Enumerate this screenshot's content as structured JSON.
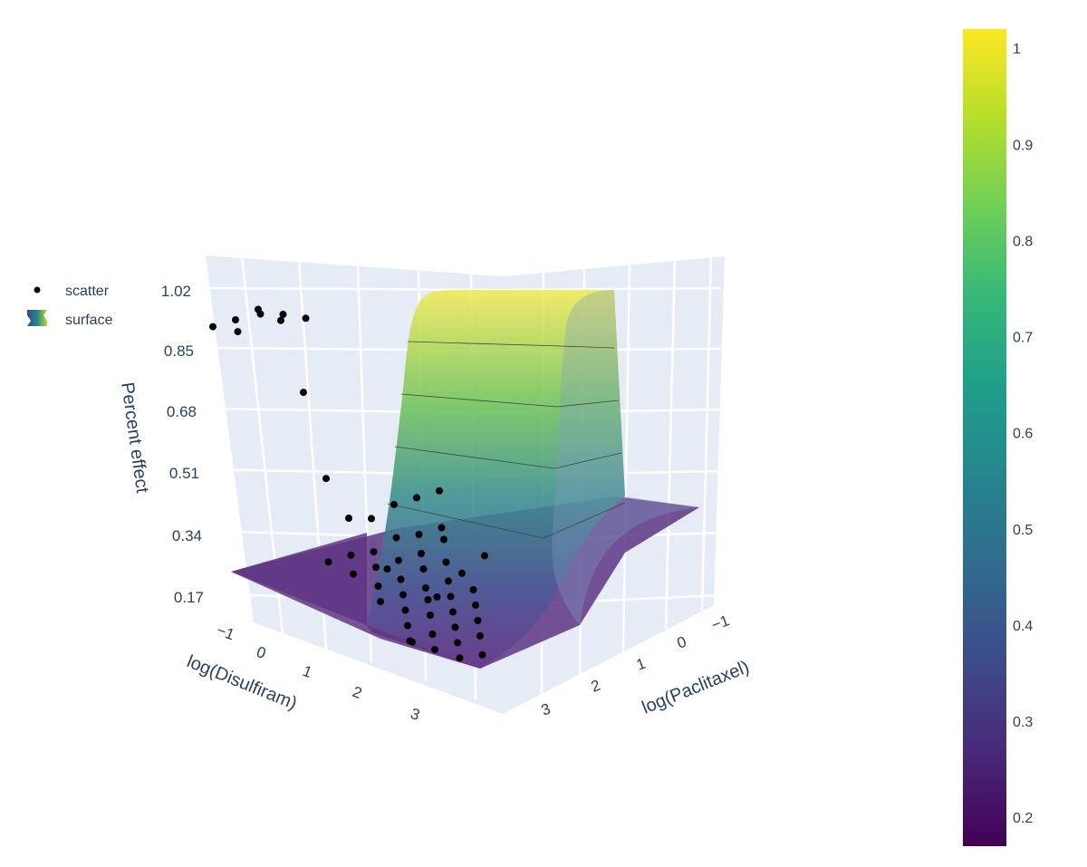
{
  "chart_data": {
    "type": "scatter",
    "series": [
      {
        "name": "scatter",
        "mode": "markers",
        "color": "#000000"
      },
      {
        "name": "surface",
        "mode": "surface",
        "colorscale": "viridis"
      }
    ],
    "legend": {
      "position": "top-left",
      "items": [
        {
          "label": "scatter"
        },
        {
          "label": "surface"
        }
      ]
    },
    "axes": {
      "x": {
        "title": "log(Disulfiram)",
        "ticks": [
          "−1",
          "0",
          "1",
          "2",
          "3"
        ],
        "range": [
          -1.5,
          3.5
        ]
      },
      "y": {
        "title": "log(Paclitaxel)",
        "ticks": [
          "−1",
          "0",
          "1",
          "2",
          "3"
        ],
        "range": [
          -1.5,
          3.5
        ]
      },
      "z": {
        "title": "Percent effect",
        "ticks": [
          "0.17",
          "0.34",
          "0.51",
          "0.68",
          "0.85",
          "1.02"
        ],
        "range": [
          0.12,
          1.08
        ]
      }
    },
    "colorbar": {
      "ticks": [
        "0.2",
        "0.3",
        "0.4",
        "0.5",
        "0.6",
        "0.7",
        "0.8",
        "0.9",
        "1"
      ],
      "range": [
        0.17,
        1.02
      ],
      "colors": [
        "#440154",
        "#482878",
        "#3e4989",
        "#31688e",
        "#26828e",
        "#1f9e89",
        "#35b779",
        "#6ece58",
        "#b5de2b",
        "#fde725"
      ]
    },
    "points": [
      [
        -1.5,
        -1.5,
        0.28
      ],
      [
        -1.0,
        -1.5,
        0.29
      ],
      [
        -0.5,
        -1.5,
        0.3
      ],
      [
        0.0,
        -1.5,
        0.29
      ],
      [
        0.5,
        -1.5,
        0.32
      ],
      [
        1.0,
        -1.5,
        0.46
      ],
      [
        1.5,
        -1.5,
        0.73
      ],
      [
        2.0,
        -1.5,
        0.96
      ],
      [
        2.5,
        -1.5,
        1.02
      ],
      [
        3.0,
        -1.5,
        1.02
      ],
      [
        3.5,
        -1.5,
        1.03
      ],
      [
        -1.0,
        -1.0,
        0.22
      ],
      [
        -0.5,
        -1.0,
        0.23
      ],
      [
        0.0,
        -1.0,
        0.25
      ],
      [
        0.5,
        -1.0,
        0.24
      ],
      [
        1.0,
        -1.0,
        0.26
      ],
      [
        1.5,
        -1.0,
        0.27
      ],
      [
        2.0,
        -1.0,
        0.98
      ],
      [
        2.5,
        -1.0,
        1.02
      ],
      [
        3.0,
        -1.0,
        1.05
      ],
      [
        3.5,
        -1.0,
        1.03
      ],
      [
        -0.5,
        -0.5,
        0.23
      ],
      [
        0.0,
        -0.5,
        0.22
      ],
      [
        0.5,
        -0.5,
        0.23
      ],
      [
        1.0,
        -0.5,
        0.24
      ],
      [
        1.5,
        -0.5,
        0.25
      ],
      [
        0.0,
        0.0,
        0.21
      ],
      [
        0.5,
        0.0,
        0.22
      ],
      [
        1.0,
        0.0,
        0.22
      ],
      [
        1.5,
        0.0,
        0.23
      ],
      [
        0.5,
        0.5,
        0.2
      ],
      [
        1.0,
        0.5,
        0.21
      ],
      [
        1.5,
        0.5,
        0.22
      ],
      [
        2.0,
        0.5,
        0.23
      ],
      [
        0.5,
        1.0,
        0.19
      ],
      [
        1.0,
        1.0,
        0.2
      ],
      [
        1.5,
        1.0,
        0.22
      ],
      [
        2.0,
        1.0,
        0.22
      ],
      [
        1.0,
        1.5,
        0.19
      ],
      [
        1.5,
        1.5,
        0.2
      ],
      [
        2.0,
        1.5,
        0.22
      ],
      [
        2.5,
        1.5,
        0.22
      ],
      [
        1.5,
        2.0,
        0.19
      ],
      [
        2.0,
        2.0,
        0.2
      ],
      [
        2.5,
        2.0,
        0.21
      ],
      [
        3.0,
        2.0,
        0.22
      ],
      [
        2.0,
        2.5,
        0.19
      ],
      [
        2.5,
        2.5,
        0.2
      ],
      [
        3.0,
        2.5,
        0.21
      ],
      [
        3.5,
        2.5,
        0.26
      ],
      [
        2.5,
        3.0,
        0.18
      ],
      [
        3.0,
        3.0,
        0.2
      ],
      [
        3.5,
        3.0,
        0.4
      ],
      [
        3.5,
        3.5,
        0.48
      ],
      [
        3.0,
        3.5,
        0.5
      ],
      [
        3.5,
        2.0,
        0.45
      ]
    ]
  }
}
